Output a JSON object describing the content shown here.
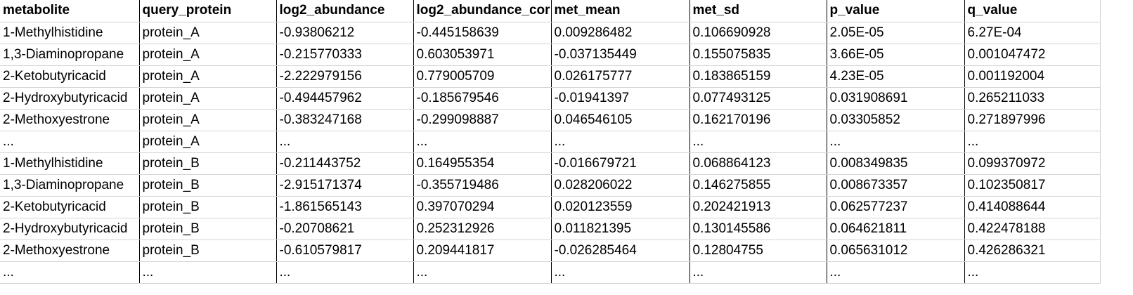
{
  "headers": [
    "metabolite",
    "query_protein",
    "log2_abundance",
    "log2_abundance_cor",
    "met_mean",
    "met_sd",
    "p_value",
    "q_value"
  ],
  "rows": [
    [
      "1-Methylhistidine",
      "protein_A",
      "-0.93806212",
      "-0.445158639",
      "0.009286482",
      "0.106690928",
      "2.05E-05",
      "6.27E-04"
    ],
    [
      "1,3-Diaminopropane",
      "protein_A",
      "-0.215770333",
      "0.603053971",
      "-0.037135449",
      "0.155075835",
      "3.66E-05",
      "0.001047472"
    ],
    [
      "2-Ketobutyricacid",
      "protein_A",
      "-2.222979156",
      "0.779005709",
      "0.026175777",
      "0.183865159",
      "4.23E-05",
      "0.001192004"
    ],
    [
      "2-Hydroxybutyricacid",
      "protein_A",
      "-0.494457962",
      "-0.185679546",
      "-0.01941397",
      "0.077493125",
      "0.031908691",
      "0.265211033"
    ],
    [
      "2-Methoxyestrone",
      "protein_A",
      "-0.383247168",
      "-0.299098887",
      "0.046546105",
      "0.162170196",
      "0.03305852",
      "0.271897996"
    ],
    [
      "...",
      "protein_A",
      "...",
      "...",
      "...",
      "...",
      "...",
      "..."
    ],
    [
      "1-Methylhistidine",
      "protein_B",
      "-0.211443752",
      "0.164955354",
      "-0.016679721",
      "0.068864123",
      "0.008349835",
      "0.099370972"
    ],
    [
      "1,3-Diaminopropane",
      "protein_B",
      "-2.915171374",
      "-0.355719486",
      "0.028206022",
      "0.146275855",
      "0.008673357",
      "0.102350817"
    ],
    [
      "2-Ketobutyricacid",
      "protein_B",
      "-1.861565143",
      "0.397070294",
      "0.020123559",
      "0.202421913",
      "0.062577237",
      "0.414088644"
    ],
    [
      "2-Hydroxybutyricacid",
      "protein_B",
      "-0.20708621",
      "0.252312926",
      "0.011821395",
      "0.130145586",
      "0.064621811",
      "0.422478188"
    ],
    [
      "2-Methoxyestrone",
      "protein_B",
      "-0.610579817",
      "0.209441817",
      "-0.026285464",
      "0.12804755",
      "0.065631012",
      "0.426286321"
    ],
    [
      "...",
      "...",
      "...",
      "...",
      "...",
      "...",
      "...",
      "..."
    ]
  ]
}
